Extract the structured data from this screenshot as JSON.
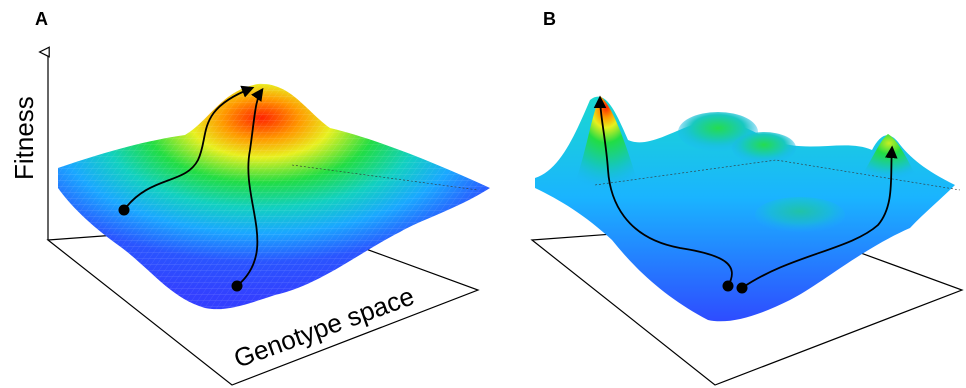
{
  "figure": {
    "panels": [
      {
        "label": "A",
        "description": "single-peak fitness landscape"
      },
      {
        "label": "B",
        "description": "rugged multi-peak fitness landscape"
      }
    ],
    "y_axis_label": "Fitness",
    "x_axis_label": "Genotype space",
    "colors": {
      "low": "#2a3cff",
      "mid_low": "#19c8ff",
      "mid": "#21e05a",
      "mid_high": "#f6f21b",
      "high": "#ff2a00",
      "paths": "#000000",
      "base_plane": "#000000"
    }
  }
}
